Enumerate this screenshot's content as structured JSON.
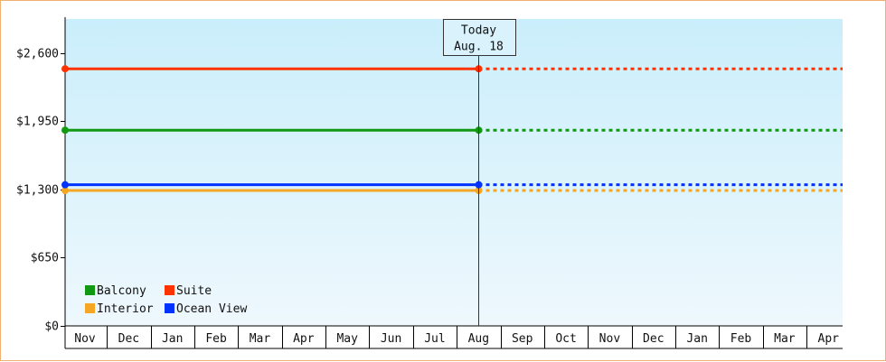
{
  "chart_data": {
    "type": "line",
    "x": [
      "Nov",
      "Dec",
      "Jan",
      "Feb",
      "Mar",
      "Apr",
      "May",
      "Jun",
      "Jul",
      "Aug",
      "Sep",
      "Oct",
      "Nov",
      "Dec",
      "Jan",
      "Feb",
      "Mar",
      "Apr"
    ],
    "ylim": [
      0,
      2925
    ],
    "yticks": [
      0,
      650,
      1300,
      1950,
      2600
    ],
    "ytick_labels": [
      "$0",
      "$650",
      "$1,300",
      "$1,950",
      "$2,600"
    ],
    "today_index": 9,
    "today_label_line1": "Today",
    "today_label_line2": "Aug. 18",
    "grid": false,
    "legend_position": "bottom-left",
    "series": [
      {
        "name": "Balcony",
        "color": "#119911",
        "values": [
          1865,
          1865,
          1865,
          1865,
          1865,
          1865,
          1865,
          1865,
          1865,
          1865,
          1865,
          1865,
          1865,
          1865,
          1865,
          1865,
          1865,
          1865
        ]
      },
      {
        "name": "Interior",
        "color": "#f5a623",
        "values": [
          1290,
          1290,
          1290,
          1290,
          1290,
          1290,
          1290,
          1290,
          1290,
          1290,
          1290,
          1290,
          1290,
          1290,
          1290,
          1290,
          1290,
          1290
        ]
      },
      {
        "name": "Suite",
        "color": "#ff3300",
        "values": [
          2450,
          2450,
          2450,
          2450,
          2450,
          2450,
          2450,
          2450,
          2450,
          2450,
          2450,
          2450,
          2450,
          2450,
          2450,
          2450,
          2450,
          2450
        ]
      },
      {
        "name": "Ocean View",
        "color": "#0033ff",
        "values": [
          1345,
          1345,
          1345,
          1345,
          1345,
          1345,
          1345,
          1345,
          1345,
          1345,
          1345,
          1345,
          1345,
          1345,
          1345,
          1345,
          1345,
          1345
        ]
      }
    ]
  }
}
